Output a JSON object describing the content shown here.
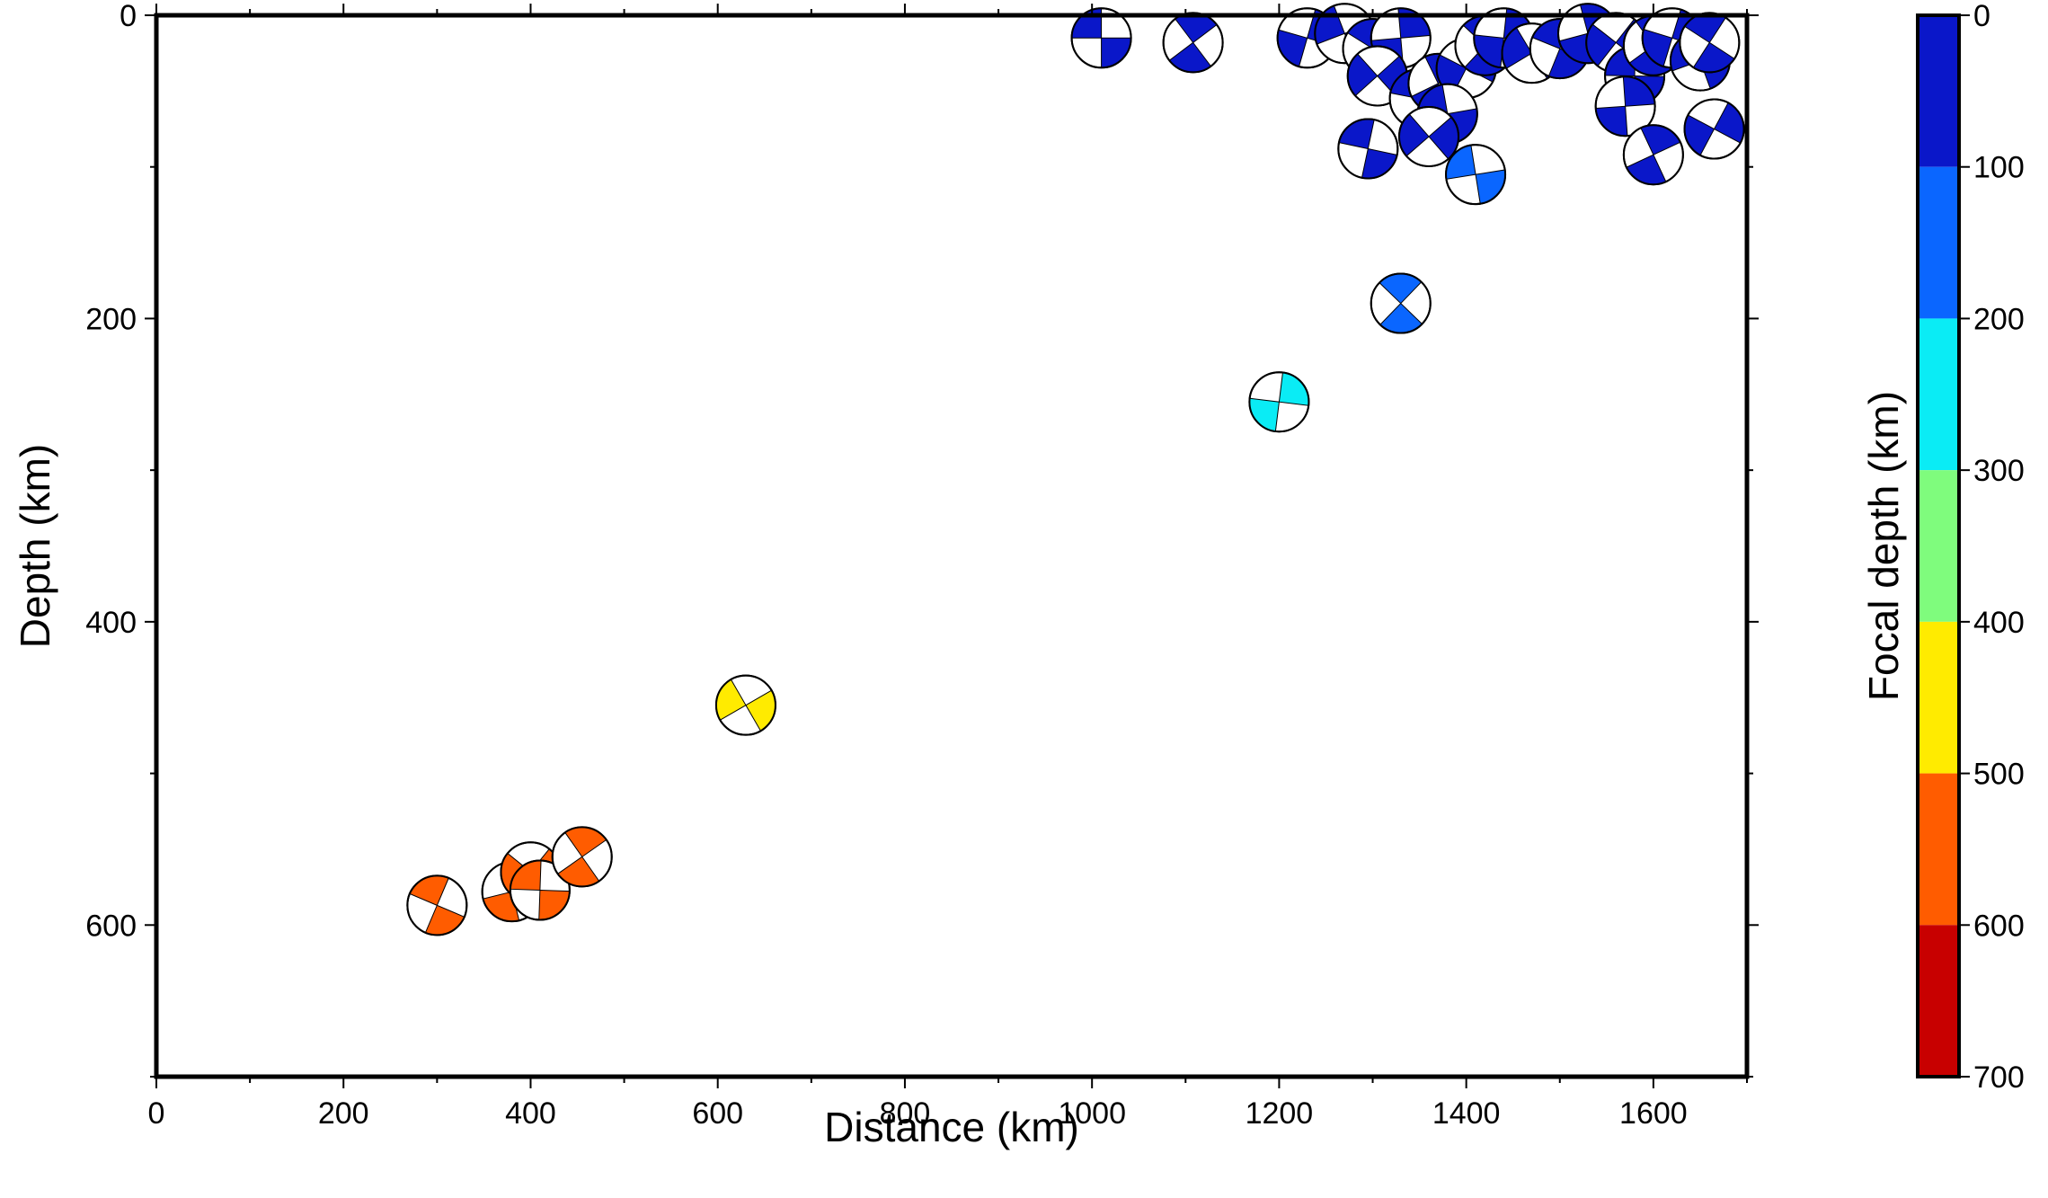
{
  "chart_data": {
    "type": "scatter",
    "title": "",
    "xlabel": "Distance (km)",
    "ylabel": "Depth (km)",
    "xlim": [
      0,
      1700
    ],
    "ylim": [
      700,
      0
    ],
    "x_ticks": [
      0,
      200,
      400,
      600,
      800,
      1000,
      1200,
      1400,
      1600
    ],
    "y_ticks": [
      0,
      200,
      400,
      600
    ],
    "grid": false,
    "colorbar": {
      "label": "Focal depth (km)",
      "ticks": [
        0,
        100,
        200,
        300,
        400,
        500,
        600,
        700
      ],
      "bands": [
        {
          "from": 0,
          "to": 100,
          "color": "#0a17c9"
        },
        {
          "from": 100,
          "to": 200,
          "color": "#0a66ff"
        },
        {
          "from": 200,
          "to": 300,
          "color": "#0aecf5"
        },
        {
          "from": 300,
          "to": 400,
          "color": "#7ffc7d"
        },
        {
          "from": 400,
          "to": 500,
          "color": "#ffeb00"
        },
        {
          "from": 500,
          "to": 600,
          "color": "#ff5c00"
        },
        {
          "from": 600,
          "to": 700,
          "color": "#c80000"
        }
      ]
    },
    "points": [
      {
        "x": 1010,
        "y": 15
      },
      {
        "x": 1108,
        "y": 18
      },
      {
        "x": 1230,
        "y": 15
      },
      {
        "x": 1270,
        "y": 12
      },
      {
        "x": 1300,
        "y": 22
      },
      {
        "x": 1330,
        "y": 15
      },
      {
        "x": 1305,
        "y": 40
      },
      {
        "x": 1350,
        "y": 55
      },
      {
        "x": 1370,
        "y": 45
      },
      {
        "x": 1400,
        "y": 35
      },
      {
        "x": 1380,
        "y": 65
      },
      {
        "x": 1420,
        "y": 20
      },
      {
        "x": 1440,
        "y": 15
      },
      {
        "x": 1470,
        "y": 25
      },
      {
        "x": 1500,
        "y": 22
      },
      {
        "x": 1530,
        "y": 12
      },
      {
        "x": 1560,
        "y": 18
      },
      {
        "x": 1580,
        "y": 40
      },
      {
        "x": 1600,
        "y": 20
      },
      {
        "x": 1620,
        "y": 15
      },
      {
        "x": 1650,
        "y": 30
      },
      {
        "x": 1660,
        "y": 18
      },
      {
        "x": 1570,
        "y": 60
      },
      {
        "x": 1360,
        "y": 80
      },
      {
        "x": 1295,
        "y": 88
      },
      {
        "x": 1600,
        "y": 92
      },
      {
        "x": 1665,
        "y": 75
      },
      {
        "x": 1410,
        "y": 105
      },
      {
        "x": 1330,
        "y": 190
      },
      {
        "x": 1200,
        "y": 255
      },
      {
        "x": 630,
        "y": 455
      },
      {
        "x": 300,
        "y": 587
      },
      {
        "x": 380,
        "y": 578
      },
      {
        "x": 400,
        "y": 565
      },
      {
        "x": 410,
        "y": 577
      },
      {
        "x": 455,
        "y": 555
      }
    ]
  }
}
